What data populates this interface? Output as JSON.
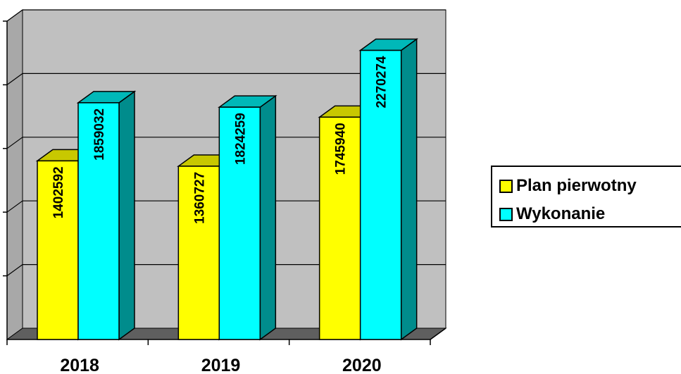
{
  "chart_data": {
    "type": "bar",
    "title": "",
    "xlabel": "",
    "ylabel": "",
    "categories": [
      "2018",
      "2019",
      "2020"
    ],
    "series": [
      {
        "name": "Plan pierwotny",
        "values": [
          1402592,
          1360727,
          1745940
        ],
        "color": "#ffff00"
      },
      {
        "name": "Wykonanie",
        "values": [
          1859032,
          1824259,
          2270274
        ],
        "color": "#00ffff"
      }
    ],
    "ylim": [
      0,
      2500000
    ],
    "grid": true,
    "legend": "right",
    "background_color": "#c0c0c0"
  }
}
